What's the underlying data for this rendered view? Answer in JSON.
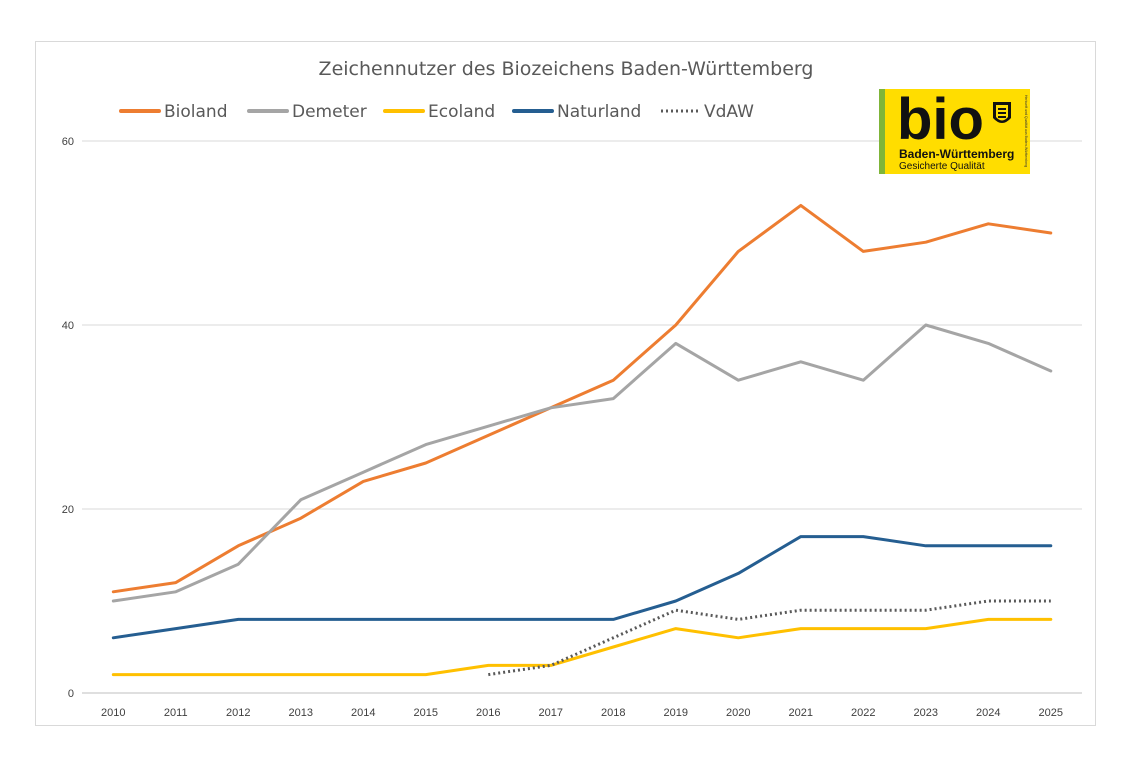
{
  "chart_data": {
    "type": "line",
    "title": "Zeichennutzer des Biozeichens Baden-Württemberg",
    "xlabel": "",
    "ylabel": "",
    "x": [
      "2010",
      "2011",
      "2012",
      "2013",
      "2014",
      "2015",
      "2016",
      "2017",
      "2018",
      "2019",
      "2020",
      "2021",
      "2022",
      "2023",
      "2024",
      "2025"
    ],
    "ylim": [
      0,
      60
    ],
    "yticks": [
      "0",
      "20",
      "40",
      "60"
    ],
    "grid": true,
    "legend_position": "top-left",
    "series": [
      {
        "name": "Bioland",
        "color": "#ED7D31",
        "style": "solid",
        "values": [
          11,
          12,
          16,
          19,
          23,
          25,
          28,
          31,
          34,
          40,
          48,
          53,
          48,
          49,
          51,
          50
        ]
      },
      {
        "name": "Demeter",
        "color": "#A5A5A5",
        "style": "solid",
        "values": [
          10,
          11,
          14,
          21,
          24,
          27,
          29,
          31,
          32,
          38,
          34,
          36,
          34,
          40,
          38,
          35
        ]
      },
      {
        "name": "Ecoland",
        "color": "#FFC000",
        "style": "solid",
        "values": [
          2,
          2,
          2,
          2,
          2,
          2,
          3,
          3,
          5,
          7,
          6,
          7,
          7,
          7,
          8,
          8
        ]
      },
      {
        "name": "Naturland",
        "color": "#255E91",
        "style": "solid",
        "values": [
          6,
          7,
          8,
          8,
          8,
          8,
          8,
          8,
          8,
          10,
          13,
          17,
          17,
          16,
          16,
          16
        ]
      },
      {
        "name": "VdAW",
        "color": "#595959",
        "style": "dotted",
        "values": [
          null,
          null,
          null,
          null,
          null,
          null,
          2,
          3,
          6,
          9,
          8,
          9,
          9,
          9,
          10,
          10
        ]
      }
    ]
  },
  "logo": {
    "main": "bio",
    "region": "Baden-Württemberg",
    "tagline": "Gesicherte Qualität",
    "side_text": "Herkunft und Qualität aus Baden-Württemberg",
    "bg_color": "#FFDD00",
    "stripe_color": "#7FB539",
    "icon": "coat-of-arms-icon"
  }
}
